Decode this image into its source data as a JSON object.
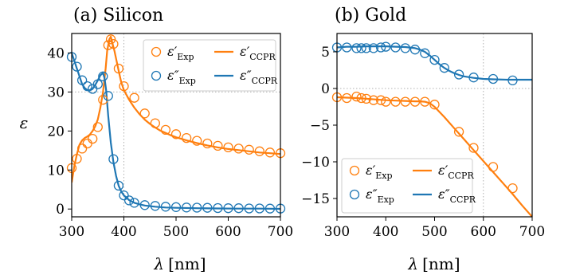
{
  "figure": {
    "ylabel": "ε",
    "xlabel_symbol": "λ",
    "xlabel_unit": "[nm]"
  },
  "colors": {
    "real": "#ff7f0e",
    "imag": "#1f77b4",
    "grid": "#b0b0b0",
    "legend_border": "#cccccc"
  },
  "chart_data": [
    {
      "type": "line",
      "panel_title": "(a) Silicon",
      "xlim": [
        300,
        700
      ],
      "ylim": [
        -2,
        45
      ],
      "xticks": [
        300,
        400,
        500,
        600,
        700
      ],
      "yticks": [
        0,
        10,
        20,
        30,
        40
      ],
      "grid": "dotted at x=400 and y=30",
      "legend": {
        "placement": "top-right",
        "entries": [
          {
            "symbol": "ε′",
            "sub": "Exp",
            "kind": "markers",
            "series": "real"
          },
          {
            "symbol": "ε′",
            "sub": "CCPR",
            "kind": "line",
            "series": "real"
          },
          {
            "symbol": "ε″",
            "sub": "Exp",
            "kind": "markers",
            "series": "imag"
          },
          {
            "symbol": "ε″",
            "sub": "CCPR",
            "kind": "line",
            "series": "imag"
          }
        ]
      },
      "series": [
        {
          "name": "ε′ Exp",
          "kind": "markers",
          "color_key": "real",
          "x": [
            300,
            310,
            320,
            330,
            340,
            350,
            360,
            370,
            375,
            380,
            390,
            400,
            420,
            440,
            460,
            480,
            500,
            520,
            540,
            560,
            580,
            600,
            620,
            640,
            660,
            680,
            700
          ],
          "y": [
            10.5,
            12.9,
            15.5,
            16.8,
            18.0,
            21.0,
            28.0,
            42.0,
            43.5,
            42.3,
            36.0,
            31.5,
            28.5,
            24.5,
            22.0,
            20.3,
            19.2,
            18.2,
            17.5,
            16.8,
            16.2,
            15.8,
            15.5,
            15.2,
            14.8,
            14.5,
            14.3
          ]
        },
        {
          "name": "ε′ CCPR",
          "kind": "line",
          "color_key": "real",
          "x": [
            300,
            305,
            310,
            315,
            320,
            325,
            330,
            335,
            340,
            345,
            350,
            355,
            360,
            365,
            368,
            372,
            375,
            378,
            382,
            386,
            390,
            395,
            400,
            410,
            420,
            430,
            440,
            450,
            460,
            470,
            480,
            490,
            500,
            520,
            540,
            560,
            580,
            600,
            620,
            640,
            660,
            680,
            700
          ],
          "y": [
            6.8,
            11.0,
            14.0,
            16.5,
            17.6,
            18.2,
            18.6,
            19.1,
            20.0,
            21.2,
            23.0,
            26.0,
            30.0,
            36.0,
            40.5,
            43.5,
            44.2,
            42.5,
            40.5,
            38.0,
            35.5,
            32.5,
            30.5,
            28.0,
            26.0,
            24.3,
            22.9,
            21.8,
            20.9,
            20.1,
            19.5,
            18.9,
            18.4,
            17.6,
            16.9,
            16.3,
            15.8,
            15.4,
            15.1,
            14.8,
            14.5,
            14.3,
            14.1
          ]
        },
        {
          "name": "ε″ Exp",
          "kind": "markers",
          "color_key": "imag",
          "x": [
            300,
            310,
            320,
            330,
            340,
            350,
            360,
            370,
            380,
            390,
            400,
            410,
            420,
            440,
            460,
            480,
            500,
            520,
            540,
            560,
            580,
            600,
            620,
            640,
            660,
            680,
            700
          ],
          "y": [
            39.0,
            36.5,
            33.0,
            31.5,
            30.8,
            32.0,
            34.0,
            29.0,
            12.8,
            6.0,
            3.5,
            2.2,
            1.6,
            1.0,
            0.8,
            0.6,
            0.5,
            0.4,
            0.35,
            0.3,
            0.25,
            0.2,
            0.2,
            0.15,
            0.15,
            0.1,
            0.1
          ]
        },
        {
          "name": "ε″ CCPR",
          "kind": "line",
          "color_key": "imag",
          "x": [
            300,
            305,
            310,
            315,
            320,
            325,
            330,
            335,
            340,
            345,
            350,
            355,
            360,
            363,
            366,
            370,
            375,
            380,
            385,
            390,
            395,
            400,
            410,
            420,
            430,
            440,
            460,
            480,
            500,
            540,
            580,
            620,
            660,
            700
          ],
          "y": [
            40.0,
            38.0,
            36.0,
            34.0,
            32.0,
            31.0,
            30.5,
            30.4,
            30.8,
            31.8,
            33.0,
            34.3,
            34.9,
            33.5,
            30.5,
            24.0,
            17.0,
            12.0,
            8.5,
            6.0,
            4.5,
            3.5,
            2.3,
            1.6,
            1.2,
            0.9,
            0.6,
            0.4,
            0.3,
            0.2,
            0.15,
            0.1,
            0.1,
            0.05
          ]
        }
      ]
    },
    {
      "type": "line",
      "panel_title": "(b) Gold",
      "xlim": [
        300,
        700
      ],
      "ylim": [
        -17.5,
        7.5
      ],
      "xticks": [
        300,
        400,
        500,
        600,
        700
      ],
      "yticks": [
        -15,
        -10,
        -5,
        0,
        5
      ],
      "grid": "dotted at x=600 and y=0",
      "legend": {
        "placement": "bottom-left",
        "entries": [
          {
            "symbol": "ε′",
            "sub": "Exp",
            "kind": "markers",
            "series": "real"
          },
          {
            "symbol": "ε′",
            "sub": "CCPR",
            "kind": "line",
            "series": "real"
          },
          {
            "symbol": "ε″",
            "sub": "Exp",
            "kind": "markers",
            "series": "imag"
          },
          {
            "symbol": "ε″",
            "sub": "CCPR",
            "kind": "line",
            "series": "imag"
          }
        ]
      },
      "series": [
        {
          "name": "ε″ Exp",
          "kind": "markers",
          "color_key": "imag",
          "x": [
            300,
            320,
            340,
            350,
            360,
            375,
            390,
            400,
            420,
            440,
            460,
            480,
            500,
            520,
            550,
            580,
            620,
            660
          ],
          "y": [
            5.6,
            5.6,
            5.5,
            5.5,
            5.5,
            5.5,
            5.6,
            5.7,
            5.6,
            5.5,
            5.3,
            4.8,
            3.9,
            2.8,
            1.9,
            1.5,
            1.3,
            1.1
          ]
        },
        {
          "name": "ε″ CCPR",
          "kind": "line",
          "color_key": "imag",
          "x": [
            300,
            320,
            340,
            360,
            380,
            400,
            420,
            440,
            460,
            470,
            480,
            490,
            500,
            510,
            520,
            530,
            540,
            550,
            560,
            580,
            600,
            620,
            650,
            680,
            700
          ],
          "y": [
            5.6,
            5.7,
            5.7,
            5.75,
            5.75,
            5.75,
            5.7,
            5.65,
            5.5,
            5.3,
            5.0,
            4.5,
            3.9,
            3.3,
            2.8,
            2.4,
            2.1,
            1.85,
            1.65,
            1.45,
            1.3,
            1.25,
            1.2,
            1.2,
            1.2
          ]
        },
        {
          "name": "ε′ Exp",
          "kind": "markers",
          "color_key": "real",
          "x": [
            300,
            320,
            340,
            350,
            360,
            375,
            390,
            400,
            420,
            440,
            460,
            480,
            500,
            550,
            580,
            620,
            660
          ],
          "y": [
            -1.2,
            -1.3,
            -1.1,
            -1.3,
            -1.4,
            -1.6,
            -1.6,
            -1.8,
            -1.8,
            -1.8,
            -1.8,
            -1.8,
            -2.2,
            -5.9,
            -8.1,
            -10.7,
            -13.6
          ]
        },
        {
          "name": "ε′ CCPR",
          "kind": "line",
          "color_key": "real",
          "x": [
            300,
            320,
            340,
            360,
            380,
            400,
            420,
            440,
            460,
            470,
            480,
            490,
            500,
            510,
            520,
            540,
            560,
            580,
            600,
            620,
            640,
            660,
            680,
            700
          ],
          "y": [
            -1.2,
            -1.25,
            -1.3,
            -1.4,
            -1.5,
            -1.6,
            -1.65,
            -1.7,
            -1.75,
            -1.75,
            -1.8,
            -2.0,
            -2.5,
            -3.2,
            -3.9,
            -5.4,
            -6.9,
            -8.4,
            -9.9,
            -11.4,
            -12.9,
            -14.4,
            -16.0,
            -17.5
          ]
        }
      ]
    }
  ]
}
